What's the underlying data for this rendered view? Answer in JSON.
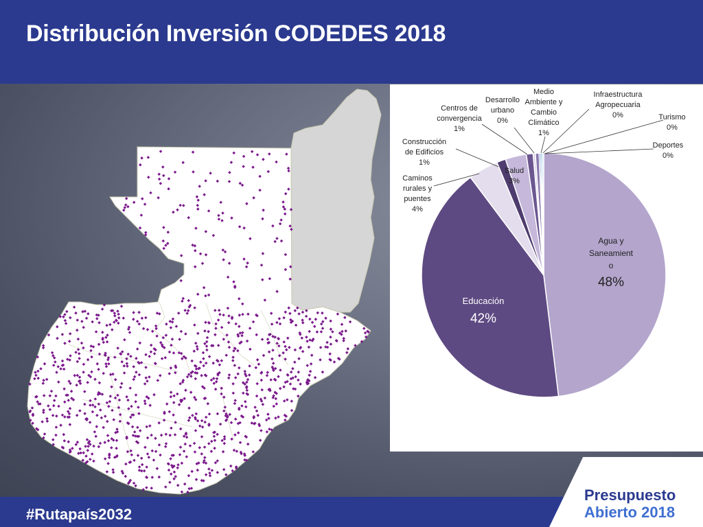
{
  "slide": {
    "title": "Distribución Inversión CODEDES 2018",
    "hashtag": "#Rutapaís2032",
    "brand_line1": "Presupuesto",
    "brand_line2": "Abierto 2018"
  },
  "colors": {
    "header": "#2b3a8f",
    "brand_blue": "#3f6fd1",
    "map_fill": "#ffffff",
    "peten_fill": "#d6d6d6",
    "dot": "#7b1a8c"
  },
  "chart_data": {
    "type": "pie",
    "title": "",
    "start_category": "Agua y Saneamiento",
    "slices": [
      {
        "name": "Agua y Saneamiento",
        "label_lines": [
          "Agua y",
          "Saneamient",
          "o"
        ],
        "pct_label": "48%",
        "value": 48.4,
        "color": "#b3a5cc"
      },
      {
        "name": "Educación",
        "label_lines": [
          "Educación"
        ],
        "pct_label": "42%",
        "value": 42.0,
        "color": "#5e4a82"
      },
      {
        "name": "Caminos rurales y puentes",
        "label_lines": [
          "Caminos",
          "rurales y",
          "puentes",
          "4%"
        ],
        "pct_label": "",
        "value": 4.0,
        "color": "#e3dded"
      },
      {
        "name": "Construcción de Edificios",
        "label_lines": [
          "Construcción",
          "de Edificios",
          "1%"
        ],
        "pct_label": "",
        "value": 1.2,
        "color": "#4e3c6e"
      },
      {
        "name": "Salud",
        "label_lines": [
          "Salud",
          "3%"
        ],
        "pct_label": "",
        "value": 2.8,
        "color": "#c5b8da"
      },
      {
        "name": "Centros de convergencia",
        "label_lines": [
          "Centros de",
          "convergencia",
          "1%"
        ],
        "pct_label": "",
        "value": 0.9,
        "color": "#6b5690"
      },
      {
        "name": "Desarrollo urbano",
        "label_lines": [
          "Desarrollo",
          "urbano",
          "0%"
        ],
        "pct_label": "",
        "value": 0.3,
        "color": "#d8cfe6"
      },
      {
        "name": "Medio Ambiente y Cambio Climático",
        "label_lines": [
          "Medio",
          "Ambiente y",
          "Cambio",
          "Climático",
          "1%"
        ],
        "pct_label": "",
        "value": 0.5,
        "color": "#8a78ad"
      },
      {
        "name": "Infraestructura Agropecuaria",
        "label_lines": [
          "Infraestructura",
          "Agropecuaria",
          "0%"
        ],
        "pct_label": "",
        "value": 0.2,
        "color": "#3a73b8"
      },
      {
        "name": "Turismo",
        "label_lines": [
          "Turismo",
          "0%"
        ],
        "pct_label": "",
        "value": 0.2,
        "color": "#5a9bd5"
      },
      {
        "name": "Deportes",
        "label_lines": [
          "Deportes",
          "0%"
        ],
        "pct_label": "",
        "value": 0.2,
        "color": "#9dc3e6"
      }
    ]
  }
}
